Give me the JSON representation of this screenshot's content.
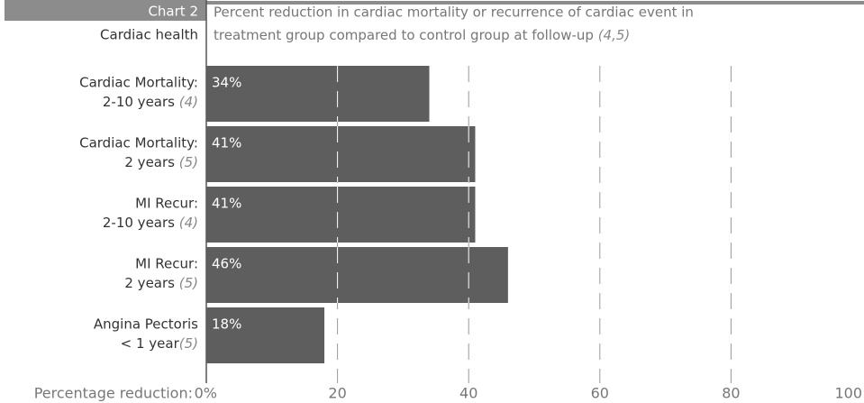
{
  "chart_data": {
    "type": "barh",
    "chart_label": "Chart 2",
    "section": "Cardiac health",
    "title": [
      "Percent reduction in cardiac mortality or recurrence of cardiac event in",
      "treatment group compared to control group at follow-up"
    ],
    "title_ref": "(4,5)",
    "xlabel": "Percentage reduction:",
    "categories": [
      {
        "line1": "Cardiac Mortality:",
        "line2": "2-10 years",
        "ref": "(4)"
      },
      {
        "line1": "Cardiac Mortality:",
        "line2": "2 years",
        "ref": "(5)"
      },
      {
        "line1": "MI Recur:",
        "line2": "2-10 years",
        "ref": "(4)"
      },
      {
        "line1": "MI Recur:",
        "line2": "2 years",
        "ref": "(5)"
      },
      {
        "line1": "Angina Pectoris",
        "line2": "< 1 year",
        "ref": "(5)"
      }
    ],
    "values": [
      34,
      41,
      41,
      46,
      18
    ],
    "value_labels": [
      "34%",
      "41%",
      "41%",
      "46%",
      "18%"
    ],
    "color": "#5e5e5e",
    "xlim": [
      0,
      100
    ],
    "xticks": [
      {
        "value": 0,
        "label": "0%"
      },
      20,
      40,
      60,
      80,
      100
    ],
    "grid": true
  }
}
